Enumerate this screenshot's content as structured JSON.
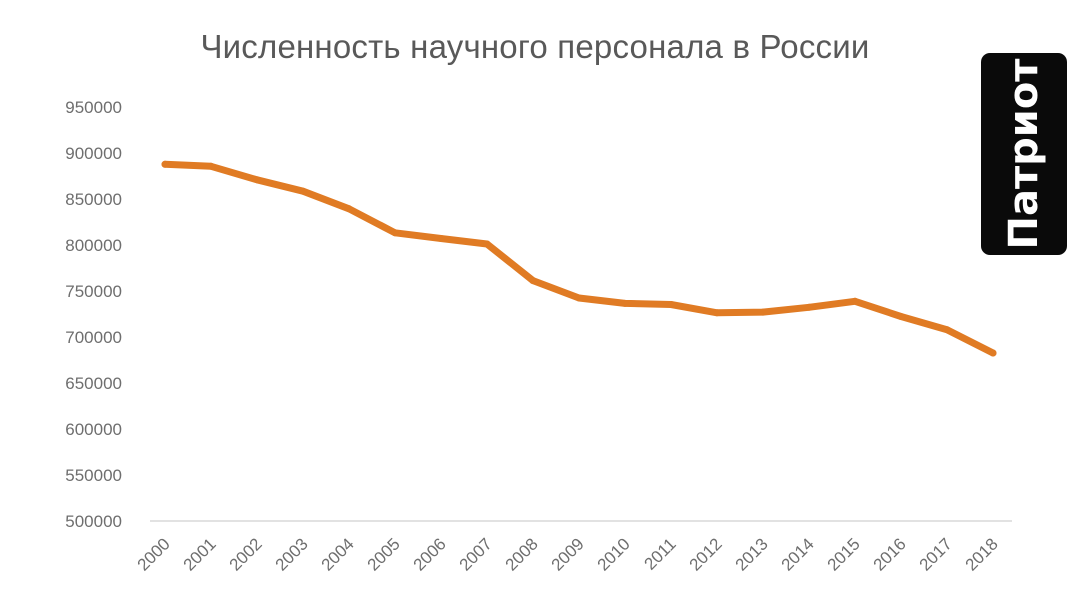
{
  "chart_data": {
    "type": "line",
    "title": "Численность научного персонала в России",
    "xlabel": "",
    "ylabel": "",
    "x": [
      "2000",
      "2001",
      "2002",
      "2003",
      "2004",
      "2005",
      "2006",
      "2007",
      "2008",
      "2009",
      "2010",
      "2011",
      "2012",
      "2013",
      "2014",
      "2015",
      "2016",
      "2017",
      "2018"
    ],
    "series": [
      {
        "values": [
          887729,
          885568,
          870878,
          858470,
          839338,
          813207,
          807066,
          801135,
          761252,
          742433,
          736540,
          735273,
          726318,
          727029,
          732274,
          738857,
          722291,
          707887,
          682580
        ],
        "color": "#e07b24"
      }
    ],
    "ylim": [
      500000,
      950000
    ],
    "yticks": [
      "950000",
      "900000",
      "850000",
      "800000",
      "750000",
      "700000",
      "650000",
      "600000",
      "550000",
      "500000"
    ],
    "grid": false,
    "legend": "none"
  },
  "badge": {
    "text": "Патриот"
  }
}
